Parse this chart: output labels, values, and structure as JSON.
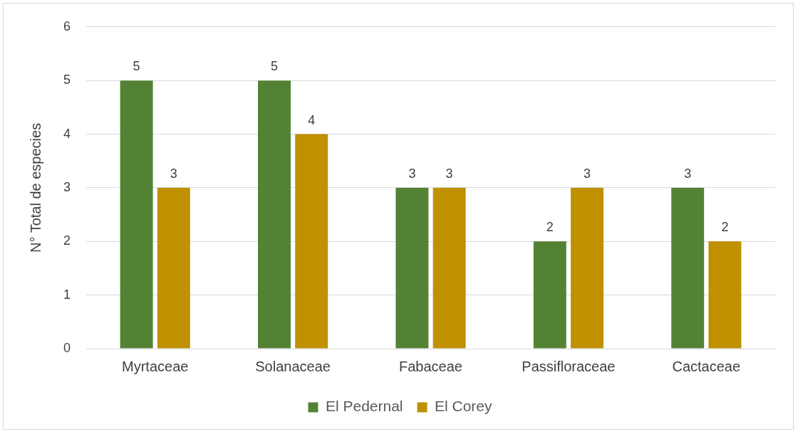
{
  "chart_data": {
    "type": "bar",
    "ylabel": "N° Total de especies",
    "categories": [
      "Myrtaceae",
      "Solanaceae",
      "Fabaceae",
      "Passifloraceae",
      "Cactaceae"
    ],
    "series": [
      {
        "name": "El Pedernal",
        "color": "#548235",
        "values": [
          5,
          5,
          3,
          2,
          3
        ]
      },
      {
        "name": "El Corey",
        "color": "#bf9000",
        "values": [
          3,
          4,
          3,
          3,
          2
        ]
      }
    ],
    "ylim": [
      0,
      6
    ],
    "yticks": [
      0,
      1,
      2,
      3,
      4,
      5,
      6
    ],
    "grid": "y",
    "legend": "bottom",
    "data_labels": true
  }
}
